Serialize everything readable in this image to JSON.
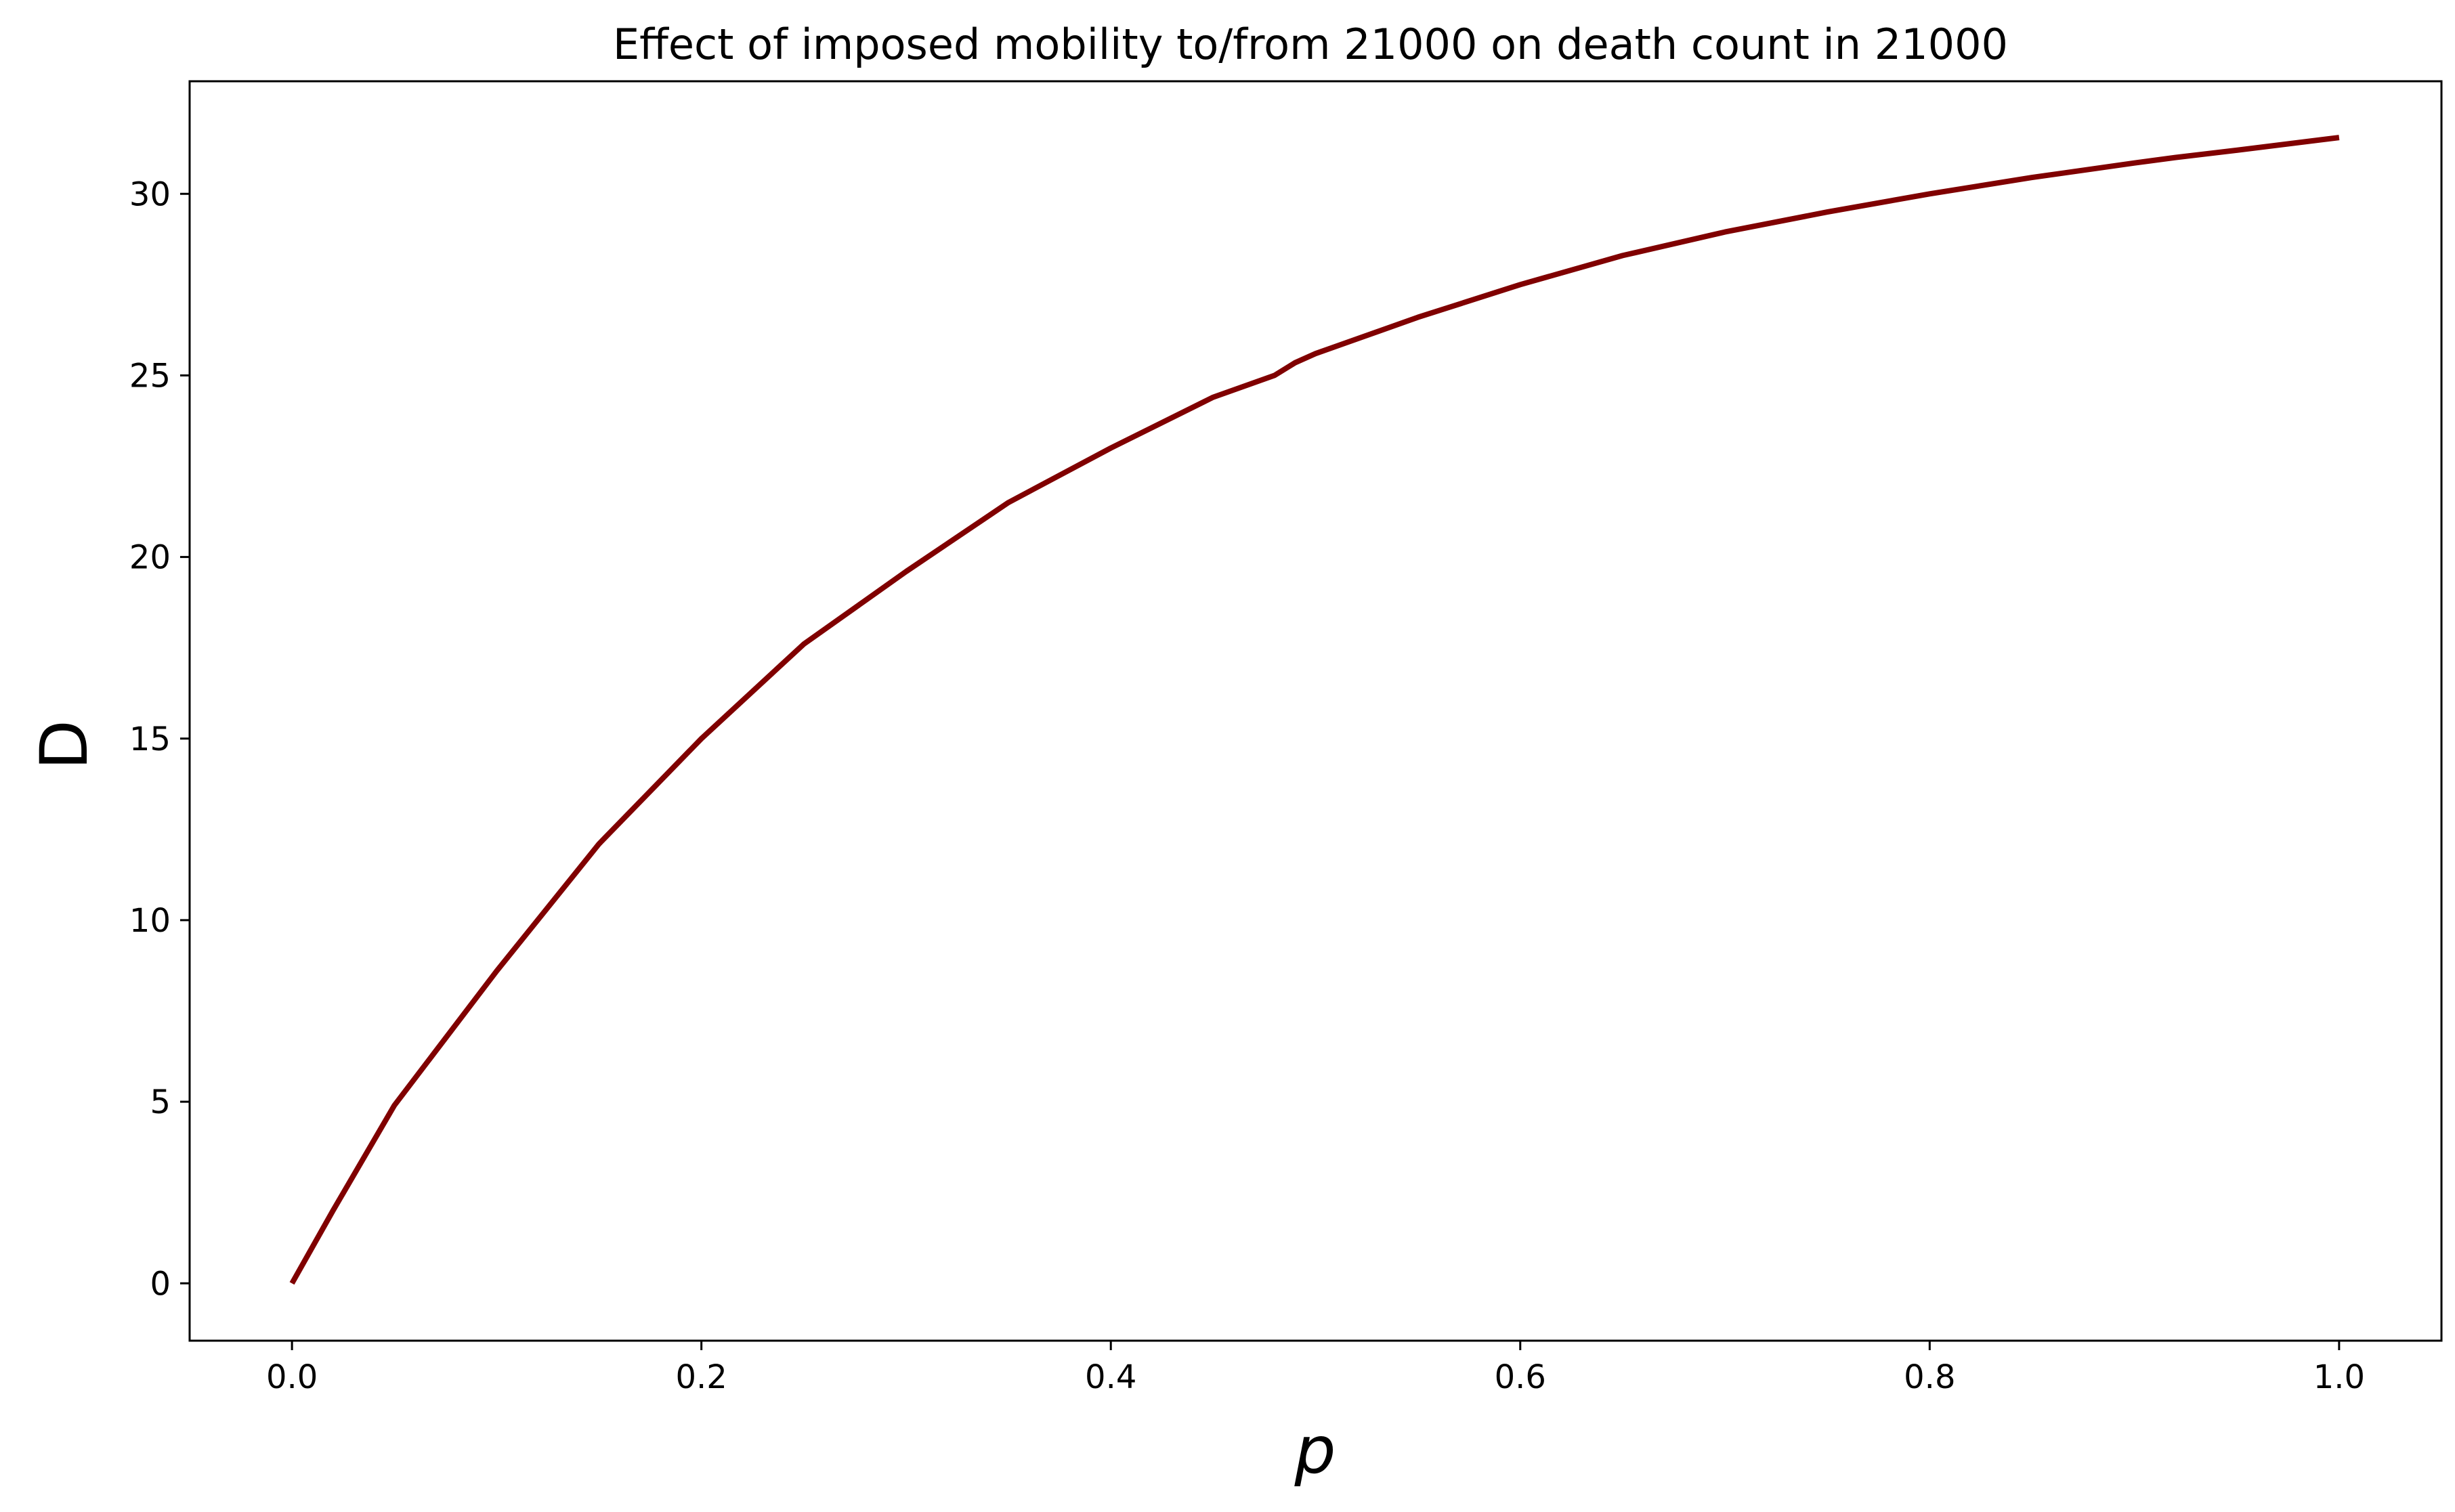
{
  "chart_data": {
    "type": "line",
    "title": "Effect of imposed mobility to/from 21000 on death count in 21000",
    "xlabel": "p",
    "ylabel": "D",
    "xlim": [
      -0.05,
      1.05
    ],
    "ylim": [
      -1.58,
      33.1
    ],
    "xticks": [
      0.0,
      0.2,
      0.4,
      0.6,
      0.8,
      1.0
    ],
    "xtick_labels": [
      "0.0",
      "0.2",
      "0.4",
      "0.6",
      "0.8",
      "1.0"
    ],
    "yticks": [
      0,
      5,
      10,
      15,
      20,
      25,
      30
    ],
    "ytick_labels": [
      "0",
      "5",
      "10",
      "15",
      "20",
      "25",
      "30"
    ],
    "grid": false,
    "legend": "none",
    "series": [
      {
        "color": "#800000",
        "x": [
          0.0,
          0.02,
          0.05,
          0.1,
          0.15,
          0.2,
          0.25,
          0.3,
          0.35,
          0.4,
          0.45,
          0.48,
          0.49,
          0.5,
          0.55,
          0.6,
          0.65,
          0.7,
          0.75,
          0.8,
          0.85,
          0.9,
          0.92,
          0.95,
          1.0
        ],
        "y": [
          0.0,
          2.0,
          4.9,
          8.6,
          12.1,
          15.0,
          17.6,
          19.6,
          21.5,
          23.0,
          24.4,
          25.0,
          25.35,
          25.6,
          26.6,
          27.5,
          28.3,
          28.95,
          29.5,
          30.0,
          30.45,
          30.85,
          31.0,
          31.2,
          31.55
        ]
      }
    ]
  }
}
